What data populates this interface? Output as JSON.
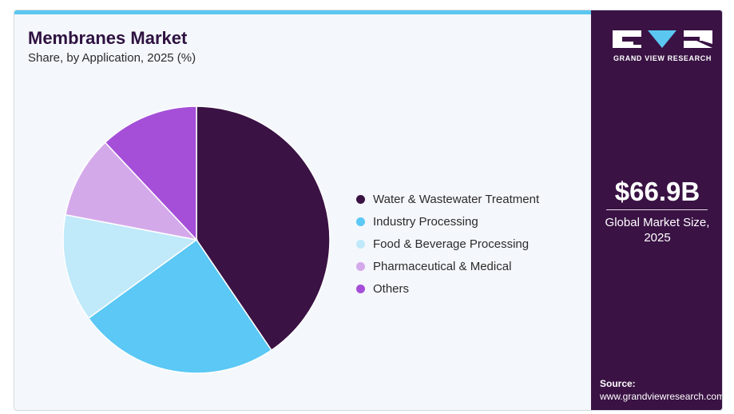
{
  "header": {
    "title": "Membranes Market",
    "subtitle": "Share, by Application, 2025 (%)"
  },
  "chart_data": {
    "type": "pie",
    "title": "Membranes Market",
    "subtitle": "Share, by Application, 2025 (%)",
    "categories": [
      "Water & Wastewater Treatment",
      "Industry Processing",
      "Food & Beverage Processing",
      "Pharmaceutical & Medical",
      "Others"
    ],
    "values": [
      40.5,
      24.5,
      13.0,
      10.0,
      12.0
    ],
    "colors": [
      "#3a1244",
      "#5bc8f5",
      "#c0e9fa",
      "#d4a9ea",
      "#a54fd9"
    ],
    "legend_position": "right"
  },
  "sidebar": {
    "brand_name": "GRAND VIEW RESEARCH",
    "market_value": "$66.9B",
    "market_label": "Global Market Size, 2025",
    "source_label": "Source:",
    "source_url": "www.grandviewresearch.com"
  },
  "colors": {
    "brand_purple": "#3a1244",
    "accent_blue": "#5bc7f0",
    "background": "#f4f7fb"
  }
}
